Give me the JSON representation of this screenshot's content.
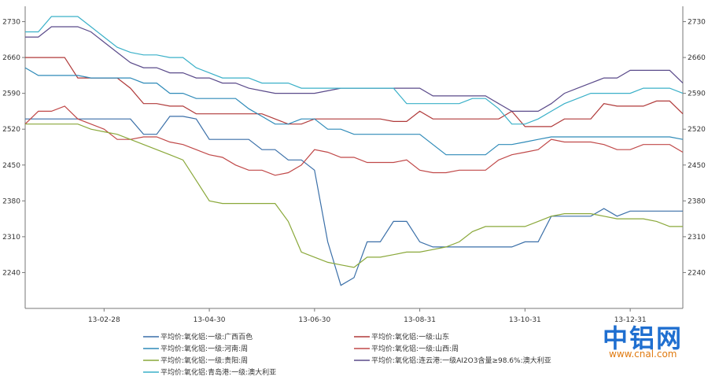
{
  "chart_data": {
    "type": "line",
    "title": "",
    "xlabel": "",
    "ylabel": "",
    "ylim": [
      2170,
      2760
    ],
    "y_ticks": [
      2240,
      2310,
      2380,
      2450,
      2520,
      2590,
      2660,
      2730
    ],
    "x_tick_labels": [
      "13-02-28",
      "13-04-30",
      "13-06-30",
      "13-08-31",
      "13-10-31",
      "13-12-31"
    ],
    "x_tick_index": [
      6,
      14,
      22,
      30,
      38,
      46
    ],
    "point_count": 51,
    "grid": false,
    "legend_position": "bottom",
    "series": [
      {
        "name": "平均价:氧化铝:一级:广西百色",
        "color": "#3a6fa8",
        "values": [
          2540,
          2540,
          2540,
          2540,
          2540,
          2540,
          2540,
          2540,
          2540,
          2510,
          2510,
          2545,
          2545,
          2540,
          2500,
          2500,
          2500,
          2500,
          2480,
          2480,
          2460,
          2460,
          2440,
          2300,
          2215,
          2230,
          2300,
          2300,
          2340,
          2340,
          2300,
          2290,
          2290,
          2290,
          2290,
          2290,
          2290,
          2290,
          2300,
          2300,
          2350,
          2350,
          2350,
          2350,
          2365,
          2350,
          2360,
          2360,
          2360,
          2360,
          2360
        ]
      },
      {
        "name": "平均价:氧化铝:一级:山东",
        "color": "#b03a3a",
        "values": [
          2660,
          2660,
          2660,
          2660,
          2620,
          2620,
          2620,
          2620,
          2600,
          2570,
          2570,
          2565,
          2565,
          2550,
          2550,
          2550,
          2550,
          2550,
          2550,
          2540,
          2530,
          2530,
          2540,
          2540,
          2540,
          2540,
          2540,
          2540,
          2535,
          2535,
          2555,
          2540,
          2540,
          2540,
          2540,
          2540,
          2540,
          2555,
          2525,
          2525,
          2525,
          2540,
          2540,
          2540,
          2570,
          2565,
          2565,
          2565,
          2575,
          2575,
          2550
        ]
      },
      {
        "name": "平均价:氧化铝:一级:河南:周",
        "color": "#2e8ab8",
        "values": [
          2640,
          2625,
          2625,
          2625,
          2625,
          2620,
          2620,
          2620,
          2620,
          2610,
          2610,
          2590,
          2590,
          2580,
          2580,
          2580,
          2580,
          2560,
          2545,
          2530,
          2530,
          2540,
          2540,
          2520,
          2520,
          2510,
          2510,
          2510,
          2510,
          2510,
          2510,
          2490,
          2470,
          2470,
          2470,
          2470,
          2490,
          2490,
          2495,
          2500,
          2505,
          2505,
          2505,
          2505,
          2505,
          2505,
          2505,
          2505,
          2505,
          2505,
          2500
        ]
      },
      {
        "name": "平均价:氧化铝:一级:山西:周",
        "color": "#c04848",
        "values": [
          2530,
          2555,
          2555,
          2565,
          2540,
          2530,
          2520,
          2500,
          2500,
          2505,
          2505,
          2495,
          2490,
          2480,
          2470,
          2465,
          2450,
          2440,
          2440,
          2430,
          2435,
          2450,
          2480,
          2475,
          2465,
          2465,
          2455,
          2455,
          2455,
          2460,
          2440,
          2435,
          2435,
          2440,
          2440,
          2440,
          2460,
          2470,
          2475,
          2480,
          2500,
          2495,
          2495,
          2495,
          2490,
          2480,
          2480,
          2490,
          2490,
          2490,
          2475
        ]
      },
      {
        "name": "平均价:氧化铝:一级:贵阳:周",
        "color": "#8aa83a",
        "values": [
          2530,
          2530,
          2530,
          2530,
          2530,
          2520,
          2515,
          2510,
          2500,
          2490,
          2480,
          2470,
          2460,
          2420,
          2380,
          2375,
          2375,
          2375,
          2375,
          2375,
          2340,
          2280,
          2270,
          2260,
          2255,
          2250,
          2270,
          2270,
          2275,
          2280,
          2280,
          2285,
          2290,
          2300,
          2320,
          2330,
          2330,
          2330,
          2330,
          2340,
          2350,
          2355,
          2355,
          2355,
          2350,
          2345,
          2345,
          2345,
          2340,
          2330,
          2330
        ]
      },
      {
        "name": "平均价:氧化铝:连云港:一级AI2O3含量≥98.6%:澳大利亚",
        "color": "#5a4a8a",
        "values": [
          2700,
          2700,
          2720,
          2720,
          2720,
          2710,
          2690,
          2670,
          2650,
          2640,
          2640,
          2630,
          2630,
          2620,
          2620,
          2610,
          2610,
          2600,
          2595,
          2590,
          2590,
          2590,
          2590,
          2595,
          2600,
          2600,
          2600,
          2600,
          2600,
          2600,
          2600,
          2585,
          2585,
          2585,
          2585,
          2585,
          2570,
          2555,
          2555,
          2555,
          2570,
          2590,
          2600,
          2610,
          2620,
          2620,
          2635,
          2635,
          2635,
          2635,
          2610
        ]
      },
      {
        "name": "平均价:氧化铝:青岛港:一级:澳大利亚",
        "color": "#3ab0c8",
        "values": [
          2710,
          2710,
          2740,
          2740,
          2740,
          2720,
          2700,
          2680,
          2670,
          2665,
          2665,
          2660,
          2660,
          2640,
          2630,
          2620,
          2620,
          2620,
          2610,
          2610,
          2610,
          2600,
          2600,
          2600,
          2600,
          2600,
          2600,
          2600,
          2600,
          2570,
          2570,
          2570,
          2570,
          2570,
          2580,
          2580,
          2560,
          2530,
          2530,
          2540,
          2555,
          2570,
          2580,
          2590,
          2590,
          2590,
          2590,
          2600,
          2600,
          2600,
          2590
        ]
      }
    ]
  },
  "brand": {
    "name": "中铝网",
    "url": "www.cnal.com"
  }
}
